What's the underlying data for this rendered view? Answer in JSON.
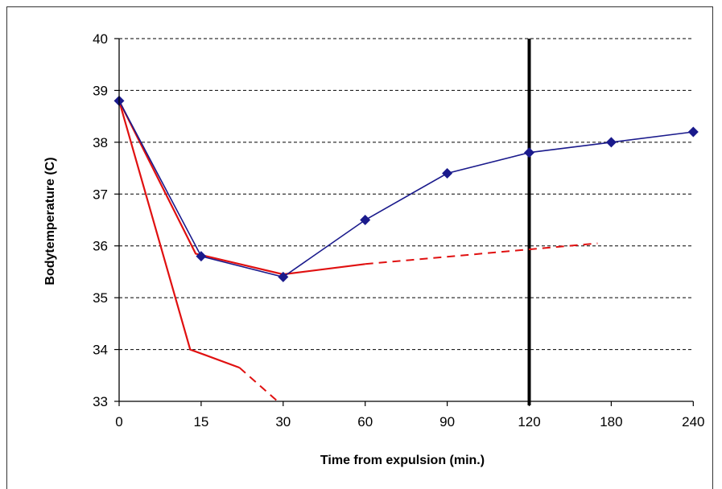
{
  "chart_data": {
    "type": "line",
    "title": "",
    "xlabel": "Time from expulsion (min.)",
    "ylabel": "Bodytemperature  (C)",
    "x_categories": [
      "0",
      "15",
      "30",
      "60",
      "90",
      "120",
      "180",
      "240"
    ],
    "ylim": [
      33,
      40
    ],
    "y_ticks": [
      "33",
      "34",
      "35",
      "36",
      "37",
      "38",
      "39",
      "40"
    ],
    "grid": "horizontal-dashed",
    "series": [
      {
        "color": "#1a1a8c",
        "marker": "diamond",
        "values": [
          38.8,
          35.8,
          35.4,
          36.5,
          37.4,
          37.8,
          38.0,
          38.2
        ]
      }
    ],
    "reference_lines": [
      {
        "type": "vertical",
        "at_category": "120",
        "color": "#000000"
      }
    ],
    "curves": [
      {
        "color": "#e01010",
        "solid": [
          [
            0,
            38.8
          ],
          [
            14,
            35.85
          ],
          [
            30,
            35.45
          ],
          [
            60,
            35.65
          ]
        ],
        "dashed": [
          [
            60,
            35.65
          ],
          [
            170,
            36.05
          ]
        ]
      },
      {
        "color": "#e01010",
        "solid": [
          [
            0,
            38.8
          ],
          [
            13,
            34.0
          ],
          [
            22,
            33.65
          ]
        ],
        "dashed": [
          [
            22,
            33.65
          ],
          [
            29,
            33.0
          ]
        ]
      }
    ]
  }
}
